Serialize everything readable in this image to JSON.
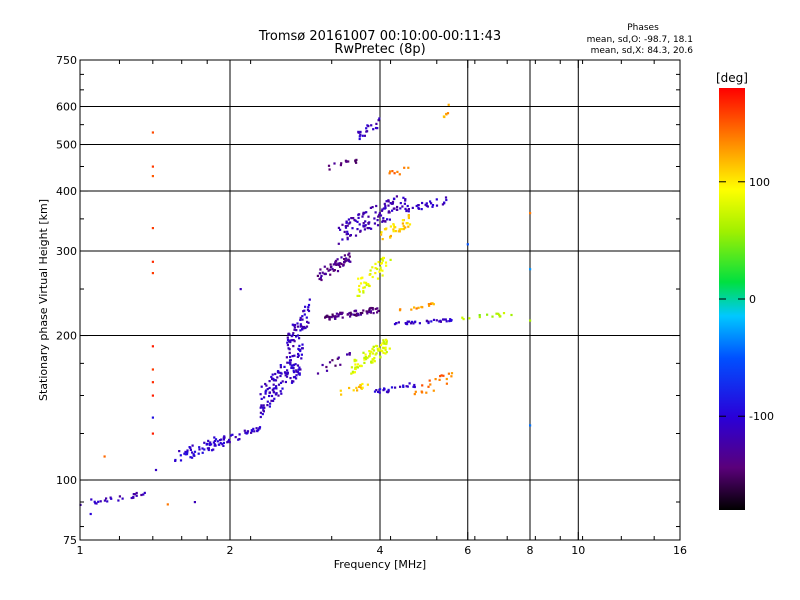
{
  "chart_data": {
    "type": "scatter",
    "title": "Tromsø 20161007 00:10:00-00:11:43",
    "subtitle": "RwPretec (8p)",
    "xlabel": "Frequency [MHz]",
    "ylabel": "Stationary phase Virtual Height [km]",
    "x_scale": "log",
    "y_scale": "log",
    "xlim": [
      1,
      16
    ],
    "ylim": [
      75,
      750
    ],
    "x_ticks": [
      "1",
      "2",
      "4",
      "6",
      "8",
      "10",
      "16"
    ],
    "y_ticks": [
      "75",
      "100",
      "200",
      "300",
      "400",
      "500",
      "600",
      "750"
    ],
    "grid": true,
    "stats": {
      "heading": "Phases",
      "o_line": "mean, sd,O: -98.7, 18.1",
      "x_line": "mean, sd,X:  84.3, 20.6"
    },
    "colorbar": {
      "label": "[deg]",
      "range": [
        -180,
        180
      ],
      "ticks": [
        "100",
        "0",
        "-100"
      ]
    },
    "traces": [
      {
        "x0": 1.0,
        "x1": 1.35,
        "y0": 88,
        "y1": 95,
        "phase": -115,
        "n": 25
      },
      {
        "x0": 1.55,
        "x1": 1.95,
        "y0": 108,
        "y1": 125,
        "phase": -105,
        "n": 55
      },
      {
        "x0": 1.9,
        "x1": 2.3,
        "y0": 118,
        "y1": 130,
        "phase": -110,
        "n": 35
      },
      {
        "x0": 2.3,
        "x1": 2.8,
        "y0": 135,
        "y1": 195,
        "phase": -110,
        "n": 130
      },
      {
        "x0": 2.6,
        "x1": 2.9,
        "y0": 180,
        "y1": 240,
        "phase": -112,
        "n": 60
      },
      {
        "x0": 3.0,
        "x1": 3.5,
        "y0": 258,
        "y1": 300,
        "phase": -135,
        "n": 55
      },
      {
        "x0": 3.1,
        "x1": 4.0,
        "y0": 215,
        "y1": 230,
        "phase": -140,
        "n": 70
      },
      {
        "x0": 3.3,
        "x1": 4.5,
        "y0": 310,
        "y1": 400,
        "phase": -118,
        "n": 110
      },
      {
        "x0": 3.6,
        "x1": 4.0,
        "y0": 510,
        "y1": 570,
        "phase": -110,
        "n": 20
      },
      {
        "x0": 3.1,
        "x1": 3.6,
        "y0": 440,
        "y1": 470,
        "phase": -140,
        "n": 14
      },
      {
        "x0": 4.5,
        "x1": 5.5,
        "y0": 360,
        "y1": 390,
        "phase": -110,
        "n": 28
      },
      {
        "x0": 3.5,
        "x1": 4.2,
        "y0": 165,
        "y1": 200,
        "phase": 80,
        "n": 80
      },
      {
        "x0": 3.6,
        "x1": 4.2,
        "y0": 240,
        "y1": 300,
        "phase": 85,
        "n": 45
      },
      {
        "x0": 4.0,
        "x1": 4.6,
        "y0": 310,
        "y1": 360,
        "phase": 110,
        "n": 35
      },
      {
        "x0": 3.3,
        "x1": 3.8,
        "y0": 150,
        "y1": 160,
        "phase": 110,
        "n": 14
      },
      {
        "x0": 3.9,
        "x1": 4.7,
        "y0": 150,
        "y1": 160,
        "phase": -105,
        "n": 25
      },
      {
        "x0": 4.2,
        "x1": 5.6,
        "y0": 210,
        "y1": 217,
        "phase": -108,
        "n": 35
      },
      {
        "x0": 4.3,
        "x1": 5.2,
        "y0": 222,
        "y1": 235,
        "phase": 130,
        "n": 14
      },
      {
        "x0": 4.6,
        "x1": 5.6,
        "y0": 145,
        "y1": 170,
        "phase": 140,
        "n": 20
      },
      {
        "x0": 5.3,
        "x1": 5.5,
        "y0": 540,
        "y1": 610,
        "phase": 125,
        "n": 6
      },
      {
        "x0": 5.8,
        "x1": 7.5,
        "y0": 215,
        "y1": 225,
        "phase": 60,
        "n": 14
      },
      {
        "x0": 4.1,
        "x1": 4.6,
        "y0": 420,
        "y1": 460,
        "phase": 145,
        "n": 8
      },
      {
        "x0": 3.0,
        "x1": 3.5,
        "y0": 165,
        "y1": 185,
        "phase": -135,
        "n": 14
      }
    ],
    "points": [
      {
        "x": 1.4,
        "y": 530,
        "phase": 155
      },
      {
        "x": 1.4,
        "y": 450,
        "phase": 160
      },
      {
        "x": 1.4,
        "y": 430,
        "phase": 150
      },
      {
        "x": 1.4,
        "y": 335,
        "phase": 160
      },
      {
        "x": 1.4,
        "y": 285,
        "phase": 165
      },
      {
        "x": 1.4,
        "y": 270,
        "phase": 160
      },
      {
        "x": 1.4,
        "y": 190,
        "phase": 170
      },
      {
        "x": 1.4,
        "y": 170,
        "phase": 160
      },
      {
        "x": 1.4,
        "y": 160,
        "phase": 165
      },
      {
        "x": 1.4,
        "y": 150,
        "phase": 170
      },
      {
        "x": 1.4,
        "y": 135,
        "phase": -90
      },
      {
        "x": 1.4,
        "y": 125,
        "phase": 170
      },
      {
        "x": 1.42,
        "y": 105,
        "phase": -110
      },
      {
        "x": 1.12,
        "y": 112,
        "phase": 145
      },
      {
        "x": 1.5,
        "y": 89,
        "phase": 140
      },
      {
        "x": 1.7,
        "y": 90,
        "phase": -115
      },
      {
        "x": 1.05,
        "y": 85,
        "phase": -100
      },
      {
        "x": 8.0,
        "y": 360,
        "phase": 140
      },
      {
        "x": 8.0,
        "y": 275,
        "phase": -30
      },
      {
        "x": 8.0,
        "y": 215,
        "phase": 60
      },
      {
        "x": 8.0,
        "y": 130,
        "phase": -40
      },
      {
        "x": 6.0,
        "y": 310,
        "phase": -50
      },
      {
        "x": 2.1,
        "y": 250,
        "phase": -115
      }
    ]
  }
}
